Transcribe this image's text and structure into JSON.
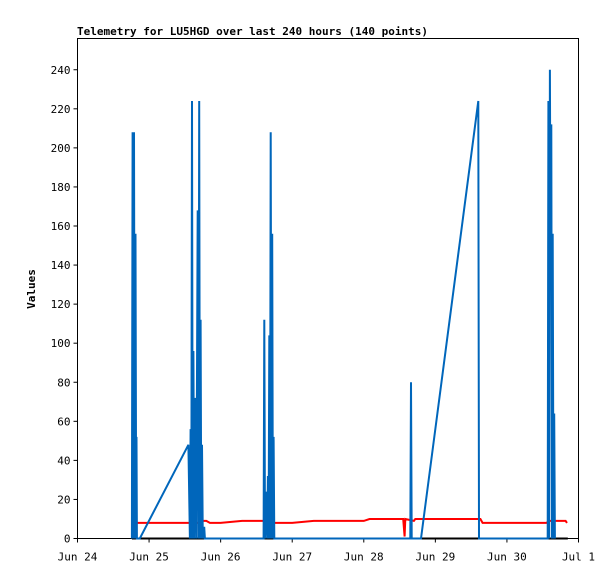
{
  "chart_data": {
    "type": "line",
    "title": "Telemetry for LU5HGD over last 240 hours (140 points)",
    "xlabel": "",
    "ylabel": "Values",
    "x_unit": "days since Jun 24 00:00",
    "xlim": [
      0,
      7.0
    ],
    "ylim": [
      0,
      256
    ],
    "x_ticks": [
      {
        "v": 0,
        "label": "Jun 24"
      },
      {
        "v": 1,
        "label": "Jun 25"
      },
      {
        "v": 2,
        "label": "Jun 26"
      },
      {
        "v": 3,
        "label": "Jun 27"
      },
      {
        "v": 4,
        "label": "Jun 28"
      },
      {
        "v": 5,
        "label": "Jun 29"
      },
      {
        "v": 6,
        "label": "Jun 30"
      },
      {
        "v": 7,
        "label": "Jul 1"
      }
    ],
    "y_ticks": [
      {
        "v": 0,
        "label": "0"
      },
      {
        "v": 20,
        "label": "20"
      },
      {
        "v": 40,
        "label": "40"
      },
      {
        "v": 60,
        "label": "60"
      },
      {
        "v": 80,
        "label": "80"
      },
      {
        "v": 100,
        "label": "100"
      },
      {
        "v": 120,
        "label": "120"
      },
      {
        "v": 140,
        "label": "140"
      },
      {
        "v": 160,
        "label": "160"
      },
      {
        "v": 180,
        "label": "180"
      },
      {
        "v": 200,
        "label": "200"
      },
      {
        "v": 220,
        "label": "220"
      },
      {
        "v": 240,
        "label": "240"
      }
    ],
    "grid": false,
    "legend": "none",
    "series": [
      {
        "color": "#000000",
        "points": [
          [
            0.76,
            0
          ],
          [
            6.85,
            0
          ]
        ]
      },
      {
        "color": "#ff0000",
        "points": [
          [
            0.76,
            8
          ],
          [
            1.0,
            8
          ],
          [
            1.5,
            8
          ],
          [
            1.72,
            8
          ],
          [
            1.75,
            9
          ],
          [
            1.8,
            9
          ],
          [
            1.85,
            8
          ],
          [
            2.0,
            8
          ],
          [
            2.3,
            9
          ],
          [
            2.6,
            9
          ],
          [
            2.7,
            8
          ],
          [
            3.0,
            8
          ],
          [
            3.3,
            9
          ],
          [
            3.6,
            9
          ],
          [
            4.0,
            9
          ],
          [
            4.08,
            10
          ],
          [
            4.3,
            10
          ],
          [
            4.55,
            10
          ],
          [
            4.57,
            1
          ],
          [
            4.58,
            10
          ],
          [
            4.7,
            9
          ],
          [
            4.72,
            10
          ],
          [
            5.0,
            10
          ],
          [
            5.3,
            10
          ],
          [
            5.63,
            10
          ],
          [
            5.66,
            8
          ],
          [
            6.0,
            8
          ],
          [
            6.55,
            8
          ],
          [
            6.6,
            9
          ],
          [
            6.82,
            9
          ],
          [
            6.84,
            8
          ]
        ]
      },
      {
        "color": "#0066bb",
        "points": [
          [
            0.76,
            0
          ],
          [
            0.77,
            208
          ],
          [
            0.78,
            0
          ],
          [
            0.79,
            208
          ],
          [
            0.8,
            0
          ],
          [
            0.81,
            156
          ],
          [
            0.82,
            0
          ],
          [
            0.825,
            52
          ],
          [
            0.83,
            0
          ],
          [
            0.85,
            0
          ],
          [
            0.87,
            0
          ],
          [
            1.55,
            48
          ],
          [
            1.57,
            0
          ],
          [
            1.58,
            56
          ],
          [
            1.59,
            0
          ],
          [
            1.6,
            224
          ],
          [
            1.61,
            0
          ],
          [
            1.62,
            96
          ],
          [
            1.63,
            0
          ],
          [
            1.65,
            72
          ],
          [
            1.66,
            0
          ],
          [
            1.68,
            168
          ],
          [
            1.69,
            0
          ],
          [
            1.7,
            224
          ],
          [
            1.71,
            0
          ],
          [
            1.72,
            112
          ],
          [
            1.73,
            0
          ],
          [
            1.74,
            48
          ],
          [
            1.75,
            0
          ],
          [
            1.77,
            6
          ],
          [
            1.78,
            0
          ],
          [
            2.6,
            0
          ],
          [
            2.61,
            112
          ],
          [
            2.62,
            0
          ],
          [
            2.64,
            24
          ],
          [
            2.65,
            0
          ],
          [
            2.66,
            32
          ],
          [
            2.67,
            0
          ],
          [
            2.68,
            104
          ],
          [
            2.69,
            0
          ],
          [
            2.7,
            208
          ],
          [
            2.71,
            0
          ],
          [
            2.72,
            156
          ],
          [
            2.73,
            0
          ],
          [
            2.74,
            52
          ],
          [
            2.75,
            0
          ],
          [
            4.65,
            0
          ],
          [
            4.66,
            80
          ],
          [
            4.67,
            0
          ],
          [
            4.8,
            0
          ],
          [
            5.6,
            224
          ],
          [
            5.61,
            0
          ],
          [
            6.57,
            0
          ],
          [
            6.58,
            224
          ],
          [
            6.59,
            0
          ],
          [
            6.6,
            240
          ],
          [
            6.61,
            136
          ],
          [
            6.62,
            212
          ],
          [
            6.63,
            0
          ],
          [
            6.64,
            156
          ],
          [
            6.65,
            0
          ],
          [
            6.66,
            64
          ],
          [
            6.67,
            0
          ]
        ]
      }
    ]
  }
}
